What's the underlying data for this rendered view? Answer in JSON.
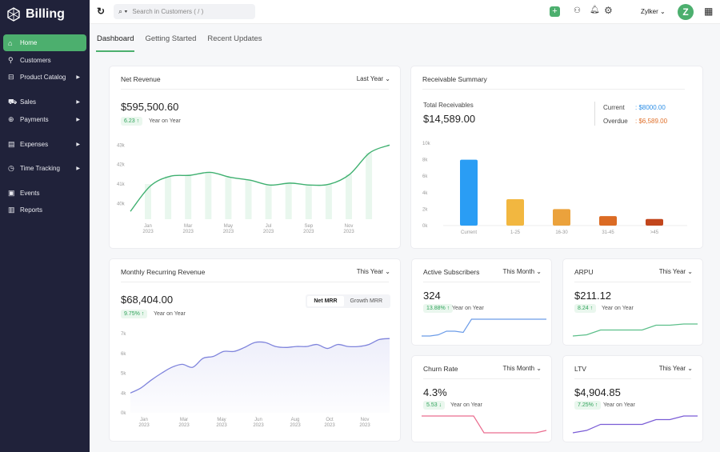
{
  "app": {
    "name": "Billing"
  },
  "sidebar": {
    "items": [
      {
        "label": "Home",
        "icon": "home-icon",
        "active": true
      },
      {
        "label": "Customers",
        "icon": "user-icon"
      },
      {
        "label": "Product Catalog",
        "icon": "bag-icon",
        "submenu": true
      },
      {
        "label": "Sales",
        "icon": "cart-icon",
        "submenu": true
      },
      {
        "label": "Payments",
        "icon": "payment-icon",
        "submenu": true
      },
      {
        "label": "Expenses",
        "icon": "receipt-icon",
        "submenu": true
      },
      {
        "label": "Time Tracking",
        "icon": "stopwatch-icon",
        "submenu": true
      },
      {
        "label": "Events",
        "icon": "events-icon"
      },
      {
        "label": "Reports",
        "icon": "reports-icon"
      }
    ]
  },
  "topbar": {
    "search_placeholder": "Search in Customers ( / )",
    "org": "Zylker",
    "avatar_letter": "Z"
  },
  "tabs": [
    "Dashboard",
    "Getting Started",
    "Recent Updates"
  ],
  "net_revenue": {
    "title": "Net Revenue",
    "period": "Last Year",
    "value": "$595,500.60",
    "change": "6.23 ↑",
    "change_label": "Year on Year",
    "chart_data": {
      "type": "line",
      "y_ticks": [
        "43k",
        "42k",
        "41k",
        "40k"
      ],
      "ylim": [
        39.2,
        43.3
      ],
      "x_labels": [
        [
          "Jan",
          "2023"
        ],
        [
          "Mar",
          "2023"
        ],
        [
          "May",
          "2023"
        ],
        [
          "Jul",
          "2023"
        ],
        [
          "Sep",
          "2023"
        ],
        [
          "Nov",
          "2023"
        ]
      ],
      "line": [
        39.6,
        40.9,
        41.4,
        41.45,
        41.6,
        41.35,
        41.2,
        40.95,
        41.05,
        40.95,
        41.0,
        41.5,
        42.6,
        43.0
      ],
      "bars": [
        41.0,
        41.4,
        41.45,
        41.6,
        41.35,
        41.2,
        40.95,
        41.05,
        40.95,
        41.0,
        41.5,
        42.6
      ]
    }
  },
  "receivables": {
    "title": "Receivable Summary",
    "total_label": "Total Receivables",
    "total": "$14,589.00",
    "current_label": "Current",
    "current": ": $8000.00",
    "overdue_label": "Overdue",
    "overdue": ": $6,589.00",
    "current_color": "#2e8fe6",
    "overdue_color": "#e0702a",
    "chart_data": {
      "type": "bar",
      "categories": [
        "Current",
        "1-25",
        "16-30",
        "31-45",
        ">45"
      ],
      "values": [
        8000,
        3200,
        2000,
        1150,
        800
      ],
      "colors": [
        "#2a9df4",
        "#f2b740",
        "#eba23c",
        "#db6b24",
        "#c2461c"
      ],
      "y_ticks": [
        "10k",
        "8k",
        "6k",
        "4k",
        "2k",
        "0k"
      ],
      "ylim": [
        0,
        10000
      ]
    }
  },
  "mrr": {
    "title": "Monthly Recurring Revenue",
    "period": "This Year",
    "value": "$68,404.00",
    "change": "9.75% ↑",
    "change_label": "Year on Year",
    "toggle": [
      "Net MRR",
      "Growth MRR"
    ],
    "chart_data": {
      "type": "area",
      "y_ticks": [
        "7k",
        "6k",
        "5k",
        "4k",
        "0k"
      ],
      "x_labels": [
        [
          "Jan",
          "2023"
        ],
        [
          "Mar",
          "2023"
        ],
        [
          "May",
          "2023"
        ],
        [
          "Jun",
          "2023"
        ],
        [
          "Aug",
          "2023"
        ],
        [
          "Oct",
          "2023"
        ],
        [
          "Nov",
          "2023"
        ]
      ],
      "values": [
        4.0,
        4.25,
        4.65,
        5.0,
        5.3,
        5.45,
        5.3,
        5.75,
        5.85,
        6.1,
        6.1,
        6.3,
        6.55,
        6.55,
        6.35,
        6.3,
        6.35,
        6.35,
        6.45,
        6.25,
        6.45,
        6.35,
        6.35,
        6.45,
        6.7,
        6.75
      ]
    }
  },
  "cards": [
    {
      "title": "Active Subscribers",
      "period": "This Month",
      "value": "324",
      "change": "13.88% ↑",
      "change_label": "Year on Year",
      "color": "#6c9ce8",
      "spark": [
        1,
        1,
        1.5,
        3,
        3,
        2.5,
        8,
        8,
        8,
        8,
        8,
        8,
        8,
        8,
        8,
        8
      ]
    },
    {
      "title": "ARPU",
      "period": "This Year",
      "value": "$211.12",
      "change": "8.24 ↑",
      "change_label": "Year on Year",
      "color": "#5cbf8a",
      "spark": [
        1,
        1.5,
        3.5,
        3.5,
        3.5,
        3.5,
        5.5,
        5.5,
        6,
        6
      ]
    },
    {
      "title": "Churn Rate",
      "period": "This Month",
      "value": "4.3%",
      "change": "5.53 ↓",
      "change_label": "Year on Year",
      "color": "#ea6d8f",
      "spark": [
        8,
        8,
        8,
        8,
        8,
        8,
        1,
        1,
        1,
        1,
        1,
        1,
        2
      ]
    },
    {
      "title": "LTV",
      "period": "This Year",
      "value": "$4,904.85",
      "change": "7.25% ↑",
      "change_label": "Year on Year",
      "color": "#7a5cd6",
      "spark": [
        1,
        2,
        4.5,
        4.5,
        4.5,
        4.5,
        6.5,
        6.5,
        8,
        8
      ]
    }
  ]
}
